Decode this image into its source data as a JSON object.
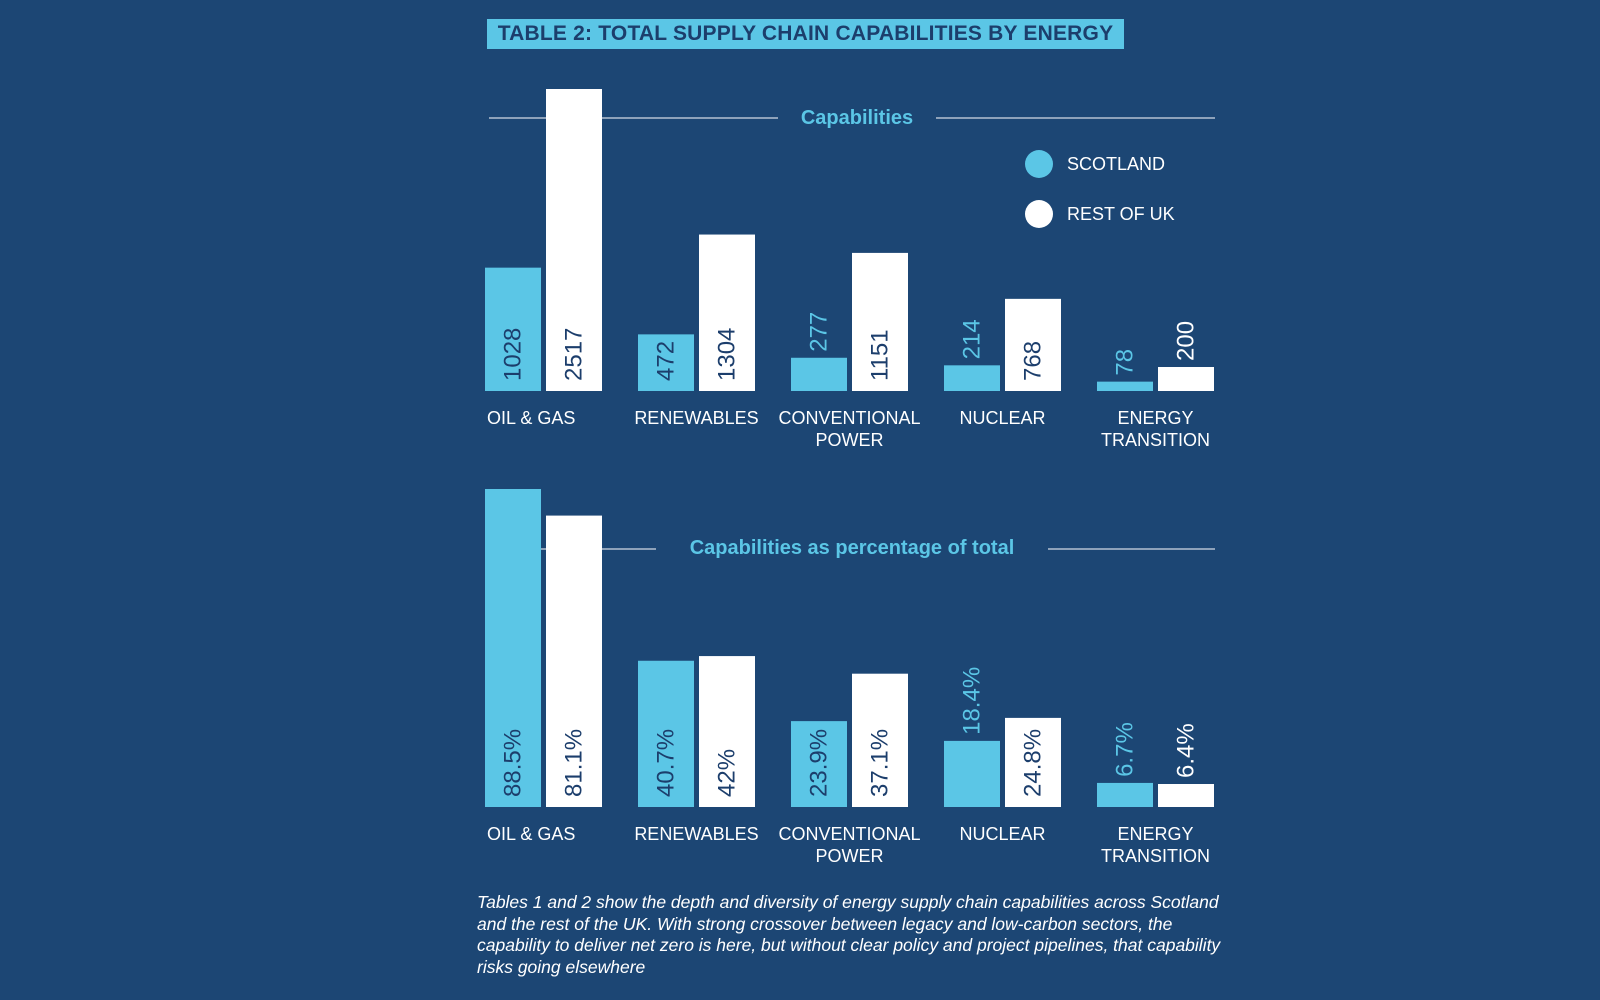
{
  "title": "TABLE 2: TOTAL SUPPLY CHAIN CAPABILITIES BY ENERGY",
  "legend": [
    {
      "name": "SCOTLAND",
      "color": "#5bc6e6"
    },
    {
      "name": "REST OF UK",
      "color": "#ffffff"
    }
  ],
  "chart_data": [
    {
      "type": "bar",
      "title": "Capabilities",
      "categories": [
        [
          "OIL & GAS"
        ],
        [
          "RENEWABLES"
        ],
        [
          "CONVENTIONAL",
          "POWER"
        ],
        [
          "NUCLEAR"
        ],
        [
          "ENERGY",
          "TRANSITION"
        ]
      ],
      "series": [
        {
          "name": "SCOTLAND",
          "color": "#5bc6e6",
          "values": [
            1028,
            472,
            277,
            214,
            78
          ],
          "labels": [
            "1028",
            "472",
            "277",
            "214",
            "78"
          ]
        },
        {
          "name": "REST OF UK",
          "color": "#ffffff",
          "values": [
            2517,
            1304,
            1151,
            768,
            200
          ],
          "labels": [
            "2517",
            "1304",
            "1151",
            "768",
            "200"
          ]
        }
      ],
      "ylim": [
        0,
        2517
      ],
      "legend_position": "top-right",
      "grid": false
    },
    {
      "type": "bar",
      "title": "Capabilities as percentage of total",
      "categories": [
        [
          "OIL & GAS"
        ],
        [
          "RENEWABLES"
        ],
        [
          "CONVENTIONAL",
          "POWER"
        ],
        [
          "NUCLEAR"
        ],
        [
          "ENERGY",
          "TRANSITION"
        ]
      ],
      "series": [
        {
          "name": "SCOTLAND",
          "color": "#5bc6e6",
          "values": [
            88.5,
            40.7,
            23.9,
            18.4,
            6.7
          ],
          "labels": [
            "88.5%",
            "40.7%",
            "23.9%",
            "18.4%",
            "6.7%"
          ]
        },
        {
          "name": "REST OF UK",
          "color": "#ffffff",
          "values": [
            81.1,
            42,
            37.1,
            24.8,
            6.4
          ],
          "labels": [
            "81.1%",
            "42%",
            "37.1%",
            "24.8%",
            "6.4%"
          ]
        }
      ],
      "ylim": [
        0,
        88.5
      ],
      "grid": false
    }
  ],
  "caption": "Tables 1 and 2 show the depth and diversity of energy supply chain capabilities across Scotland and the rest of the UK. With strong crossover between legacy and low-carbon sectors, the capability to deliver net zero is here, but without clear policy and project pipelines, that capability risks going elsewhere"
}
